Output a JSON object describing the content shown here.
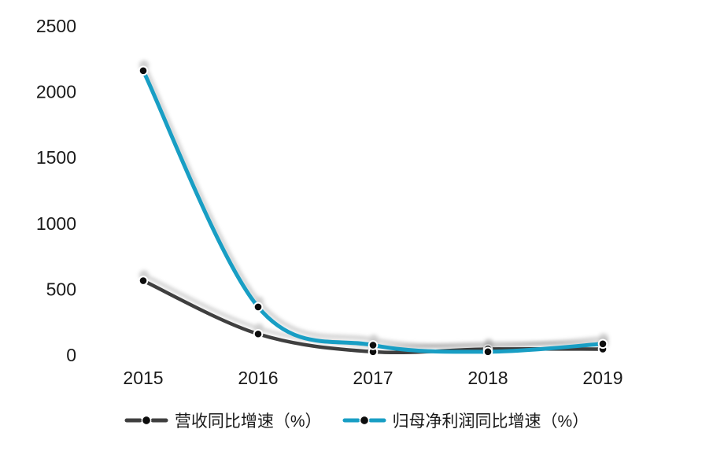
{
  "page": {
    "background": "#FFFFFF",
    "text_color": "#1A1A1A"
  },
  "chart_data": {
    "type": "line",
    "title": "",
    "xlabel": "",
    "ylabel": "",
    "categories": [
      "2015",
      "2016",
      "2017",
      "2018",
      "2019"
    ],
    "series": [
      {
        "name": "营收同比增速（%）",
        "color": "#3F3F3F",
        "stroke_width": 4.5,
        "values": [
          565,
          160,
          25,
          45,
          45
        ]
      },
      {
        "name": "归母净利润同比增速（%）",
        "color": "#189EC4",
        "stroke_width": 5,
        "values": [
          2160,
          365,
          75,
          25,
          85
        ]
      }
    ],
    "yticks": [
      0,
      500,
      1000,
      1500,
      2000,
      2500
    ],
    "ylim": [
      0,
      2500
    ],
    "grid": false,
    "axis_lines": false,
    "smooth": true,
    "legend_position": "bottom",
    "marker": "filled-circle",
    "marker_color": "#0D0D0D",
    "marker_ring_color": "#FFFFFF"
  }
}
